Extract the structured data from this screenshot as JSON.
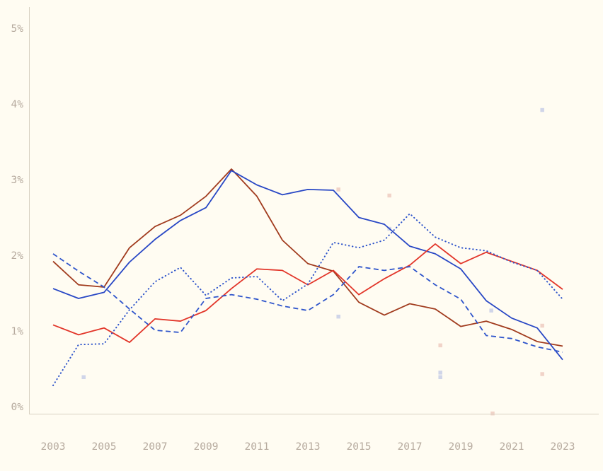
{
  "chart_data": {
    "type": "line",
    "title": "",
    "xlabel": "",
    "ylabel": "",
    "grid": false,
    "legend": "none",
    "xlim": [
      2003,
      2023
    ],
    "ylim": [
      0,
      5
    ],
    "x": [
      2003,
      2004,
      2005,
      2006,
      2007,
      2008,
      2009,
      2010,
      2011,
      2012,
      2013,
      2014,
      2015,
      2016,
      2017,
      2018,
      2019,
      2020,
      2021,
      2022,
      2023
    ],
    "xticks": {
      "values": [
        2003,
        2005,
        2007,
        2009,
        2011,
        2013,
        2015,
        2017,
        2019,
        2021,
        2023
      ],
      "labels": [
        "2003",
        "2005",
        "2007",
        "2009",
        "2011",
        "2013",
        "2015",
        "2017",
        "2019",
        "2021",
        "2023"
      ]
    },
    "yticks": {
      "values": [
        0,
        1,
        2,
        3,
        4,
        5
      ],
      "labels": [
        "0%",
        "1%",
        "2%",
        "3%",
        "4%",
        "5%"
      ]
    },
    "series": [
      {
        "name": "dark-red-solid-line",
        "style": "solid",
        "color": "#a13b1e",
        "values": [
          1.92,
          1.61,
          1.58,
          2.1,
          2.38,
          2.53,
          2.78,
          3.14,
          2.78,
          2.2,
          1.89,
          1.79,
          1.38,
          1.21,
          1.36,
          1.29,
          1.06,
          1.13,
          1.02,
          0.86,
          0.8
        ]
      },
      {
        "name": "blue-solid-line",
        "style": "solid",
        "color": "#2847c5",
        "values": [
          1.56,
          1.43,
          1.51,
          1.91,
          2.21,
          2.46,
          2.63,
          3.12,
          2.93,
          2.8,
          2.87,
          2.86,
          2.5,
          2.41,
          2.12,
          2.02,
          1.82,
          1.4,
          1.17,
          1.04,
          0.62
        ]
      },
      {
        "name": "red-solid-line",
        "style": "solid",
        "color": "#e23529",
        "values": [
          1.08,
          0.95,
          1.04,
          0.85,
          1.16,
          1.13,
          1.27,
          1.56,
          1.82,
          1.8,
          1.61,
          1.8,
          1.48,
          1.69,
          1.87,
          2.15,
          1.89,
          2.04,
          1.92,
          1.8,
          1.55
        ]
      },
      {
        "name": "blue-dashed-line",
        "style": "dashed",
        "color": "#2f55cb",
        "values": [
          2.02,
          1.79,
          1.58,
          1.29,
          1.01,
          0.98,
          1.43,
          1.48,
          1.42,
          1.33,
          1.27,
          1.48,
          1.85,
          1.8,
          1.85,
          1.61,
          1.42,
          0.94,
          0.9,
          0.79,
          0.72
        ]
      },
      {
        "name": "blue-dotted-line",
        "style": "dotted",
        "color": "#2f55cb",
        "values": [
          0.28,
          0.82,
          0.83,
          1.28,
          1.65,
          1.84,
          1.47,
          1.7,
          1.72,
          1.4,
          1.62,
          2.17,
          2.1,
          2.2,
          2.55,
          2.24,
          2.1,
          2.06,
          1.91,
          1.8,
          1.42
        ]
      }
    ],
    "scatter": [
      {
        "x": 2004.2,
        "y": 0.39,
        "color": "#97a6dd"
      },
      {
        "x": 2014.2,
        "y": 2.87,
        "color": "#dfa294"
      },
      {
        "x": 2014.2,
        "y": 1.19,
        "color": "#97a6dd"
      },
      {
        "x": 2016.2,
        "y": 2.79,
        "color": "#dfa294"
      },
      {
        "x": 2016.2,
        "y": 2.35,
        "color": "#97a6dd"
      },
      {
        "x": 2018.2,
        "y": 0.81,
        "color": "#dfa294"
      },
      {
        "x": 2018.2,
        "y": 0.45,
        "color": "#97a6dd"
      },
      {
        "x": 2018.2,
        "y": 0.39,
        "color": "#97a6dd"
      },
      {
        "x": 2020.2,
        "y": 1.27,
        "color": "#97a6dd"
      },
      {
        "x": 2020.25,
        "y": -0.09,
        "color": "#dfa294"
      },
      {
        "x": 2022.2,
        "y": 3.92,
        "color": "#97a6dd"
      },
      {
        "x": 2022.2,
        "y": 1.07,
        "color": "#dfa294"
      },
      {
        "x": 2022.2,
        "y": 0.43,
        "color": "#dfa294"
      }
    ]
  },
  "colors": {
    "background": "#fffcf2",
    "axis": "#d8d1c2",
    "tick_label": "#b6aa9e"
  }
}
